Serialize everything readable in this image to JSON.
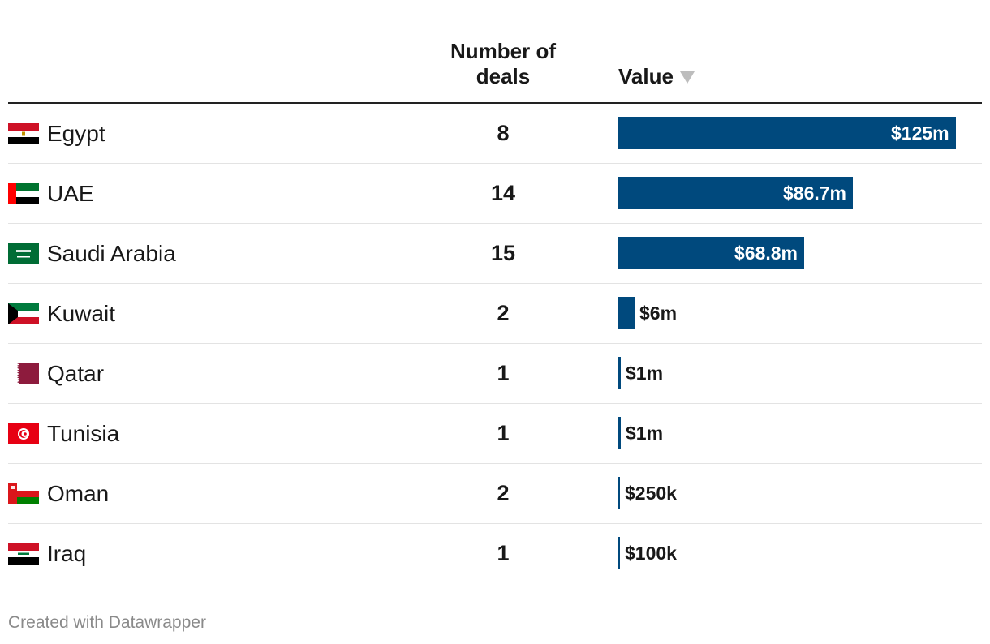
{
  "header": {
    "deals_line1": "Number of",
    "deals_line2": "deals",
    "value_label": "Value",
    "sort_icon": "sort-desc-triangle-icon"
  },
  "chart_data": {
    "type": "table",
    "columns": [
      "",
      "Number of deals",
      "Value"
    ],
    "max_value": 125000000,
    "rows": [
      {
        "country": "Egypt",
        "flag": "egypt-flag-icon",
        "deals": "8",
        "value": 125000000,
        "value_label": "$125m"
      },
      {
        "country": "UAE",
        "flag": "uae-flag-icon",
        "deals": "14",
        "value": 86700000,
        "value_label": "$86.7m"
      },
      {
        "country": "Saudi Arabia",
        "flag": "saudi-arabia-flag-icon",
        "deals": "15",
        "value": 68800000,
        "value_label": "$68.8m"
      },
      {
        "country": "Kuwait",
        "flag": "kuwait-flag-icon",
        "deals": "2",
        "value": 6000000,
        "value_label": "$6m"
      },
      {
        "country": "Qatar",
        "flag": "qatar-flag-icon",
        "deals": "1",
        "value": 1000000,
        "value_label": "$1m"
      },
      {
        "country": "Tunisia",
        "flag": "tunisia-flag-icon",
        "deals": "1",
        "value": 1000000,
        "value_label": "$1m"
      },
      {
        "country": "Oman",
        "flag": "oman-flag-icon",
        "deals": "2",
        "value": 250000,
        "value_label": "$250k"
      },
      {
        "country": "Iraq",
        "flag": "iraq-flag-icon",
        "deals": "1",
        "value": 100000,
        "value_label": "$100k"
      }
    ],
    "bar_color": "#00497d"
  },
  "footer": {
    "credit": "Created with Datawrapper"
  }
}
